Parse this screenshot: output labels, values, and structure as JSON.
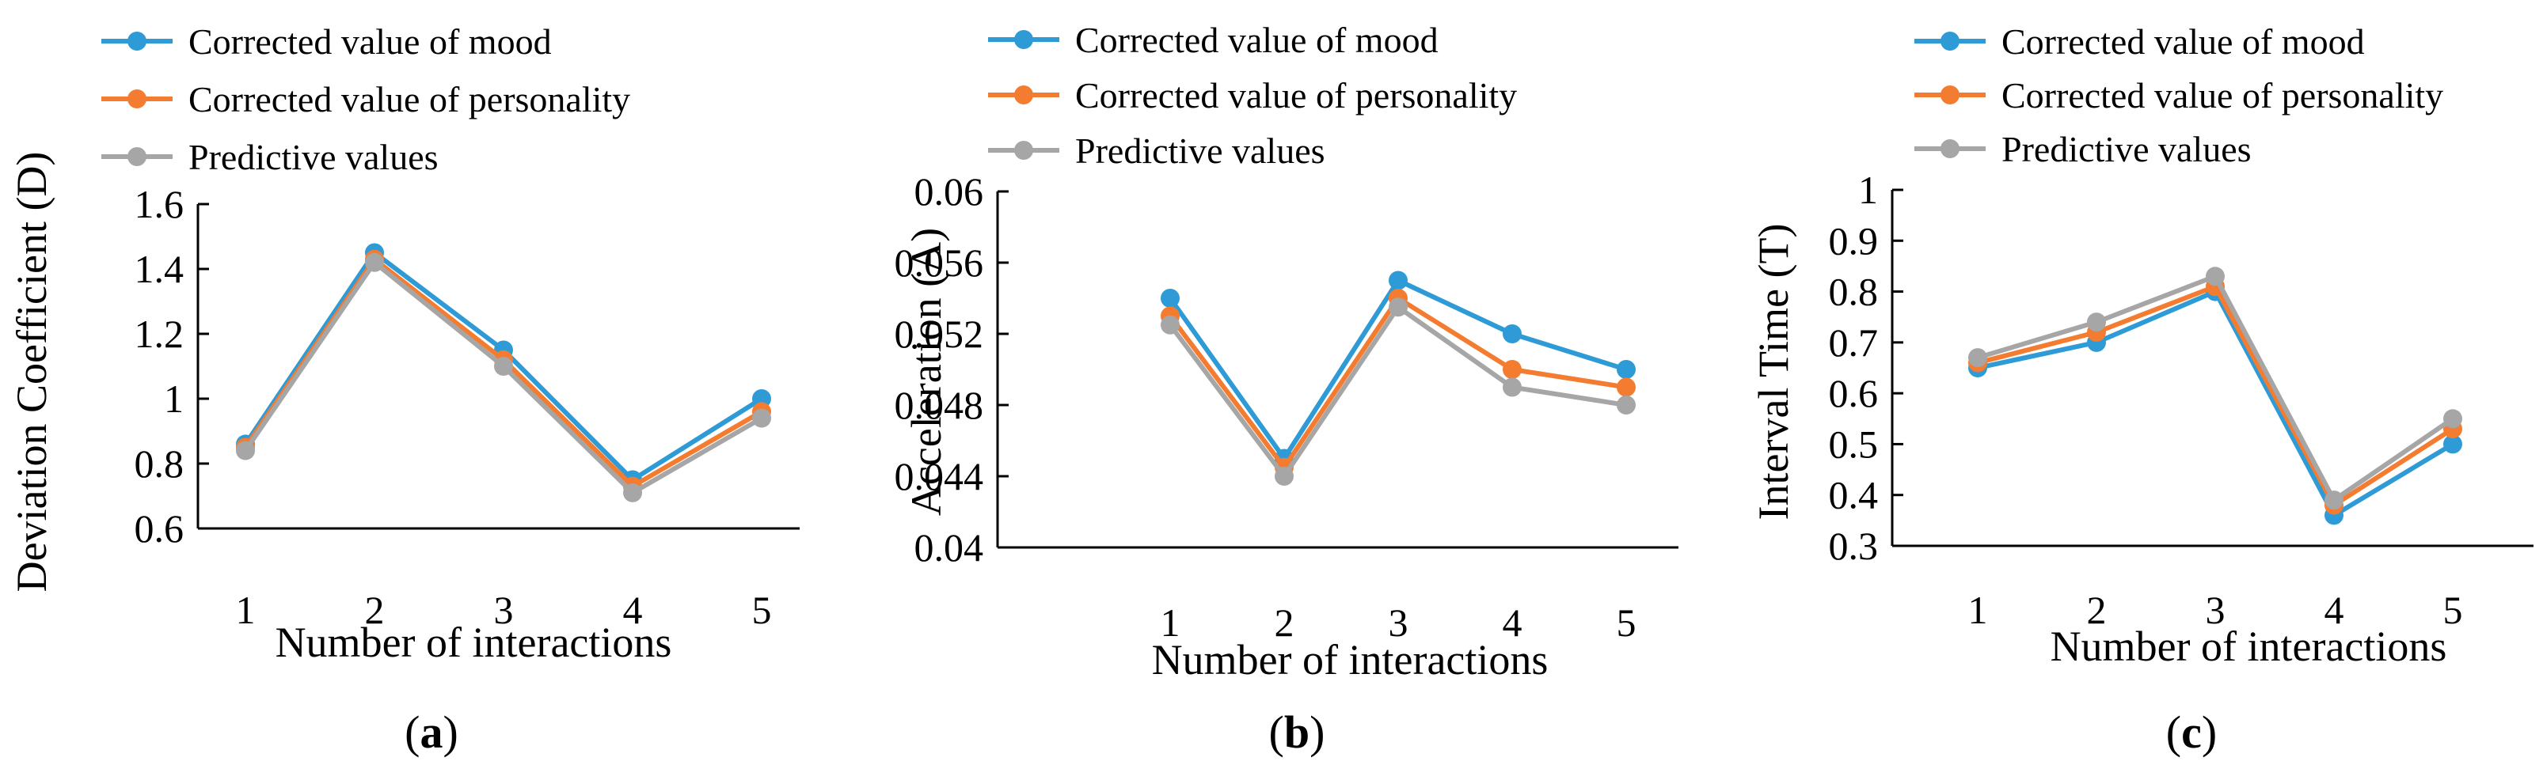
{
  "chart_data": [
    {
      "type": "line",
      "panel": "a",
      "x": [
        1,
        2,
        3,
        4,
        5
      ],
      "xlabel": "Number of interactions",
      "ylabel": "Deviation Coefficient (D)",
      "ylim": [
        0.6,
        1.6
      ],
      "yticks": [
        "0.6",
        "0.8",
        "1",
        "1.2",
        "1.4",
        "1.6"
      ],
      "xticks": [
        "1",
        "2",
        "3",
        "4",
        "5"
      ],
      "legend": "top-left",
      "grid": false,
      "series": [
        {
          "name": "Corrected value of mood",
          "color": "#2E9BD6",
          "values": [
            0.86,
            1.45,
            1.15,
            0.75,
            1.0
          ]
        },
        {
          "name": "Corrected value of personality",
          "color": "#F47C30",
          "values": [
            0.85,
            1.43,
            1.12,
            0.73,
            0.96
          ]
        },
        {
          "name": "Predictive values",
          "color": "#A6A6A6",
          "values": [
            0.84,
            1.42,
            1.1,
            0.71,
            0.94
          ]
        }
      ]
    },
    {
      "type": "line",
      "panel": "b",
      "x": [
        1,
        2,
        3,
        4,
        5
      ],
      "xlabel": "Number of interactions",
      "ylabel": "Acceleration (A)",
      "ylim": [
        0.04,
        0.06
      ],
      "yticks": [
        "0.04",
        "0.044",
        "0.048",
        "0.052",
        "0.056",
        "0.06"
      ],
      "xticks": [
        "1",
        "2",
        "3",
        "4",
        "5"
      ],
      "legend": "top-left",
      "grid": false,
      "series": [
        {
          "name": "Corrected value of mood",
          "color": "#2E9BD6",
          "values": [
            0.054,
            0.045,
            0.055,
            0.052,
            0.05
          ]
        },
        {
          "name": "Corrected value of personality",
          "color": "#F47C30",
          "values": [
            0.053,
            0.0445,
            0.054,
            0.05,
            0.049
          ]
        },
        {
          "name": "Predictive values",
          "color": "#A6A6A6",
          "values": [
            0.0525,
            0.044,
            0.0535,
            0.049,
            0.048
          ]
        }
      ]
    },
    {
      "type": "line",
      "panel": "c",
      "x": [
        1,
        2,
        3,
        4,
        5
      ],
      "xlabel": "Number of interactions",
      "ylabel": "Interval Time (T)",
      "ylim": [
        0.3,
        1.0
      ],
      "yticks": [
        "0.3",
        "0.4",
        "0.5",
        "0.6",
        "0.7",
        "0.8",
        "0.9",
        "1"
      ],
      "xticks": [
        "1",
        "2",
        "3",
        "4",
        "5"
      ],
      "legend": "top-left",
      "grid": false,
      "series": [
        {
          "name": "Corrected value of mood",
          "color": "#2E9BD6",
          "values": [
            0.65,
            0.7,
            0.8,
            0.36,
            0.5
          ]
        },
        {
          "name": "Corrected value of personality",
          "color": "#F47C30",
          "values": [
            0.66,
            0.72,
            0.81,
            0.38,
            0.53
          ]
        },
        {
          "name": "Predictive values",
          "color": "#A6A6A6",
          "values": [
            0.67,
            0.74,
            0.83,
            0.39,
            0.55
          ]
        }
      ]
    }
  ],
  "panel_labels": [
    {
      "open": "(",
      "letter": "a",
      "close": ")"
    },
    {
      "open": "(",
      "letter": "b",
      "close": ")"
    },
    {
      "open": "(",
      "letter": "c",
      "close": ")"
    }
  ]
}
